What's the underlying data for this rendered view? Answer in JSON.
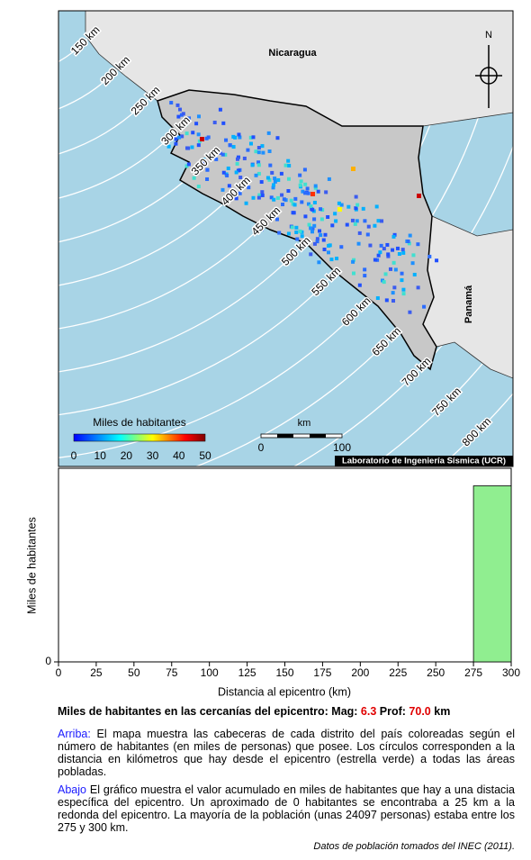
{
  "map": {
    "country_labels": [
      "Nicaragua",
      "Panamá"
    ],
    "north": "N",
    "distance_labels": [
      "150 km",
      "200 km",
      "250 km",
      "300 km",
      "350 km",
      "400 km",
      "450 km",
      "500 km",
      "550 km",
      "600 km",
      "650 km",
      "700 km",
      "750 km",
      "800 km"
    ],
    "colorbar": {
      "title": "Miles de habitantes",
      "ticks": [
        0,
        10,
        20,
        30,
        40,
        50
      ]
    },
    "scale": {
      "title": "km",
      "ticks": [
        0,
        100
      ]
    },
    "credit": "Laboratorio de Ingeniería Sísmica (UCR)"
  },
  "chart_data": {
    "type": "histogram",
    "xlabel": "Distancia al epicentro (km)",
    "ylabel": "Miles de habitantes",
    "bins": [
      0,
      25,
      50,
      75,
      100,
      125,
      150,
      175,
      200,
      225,
      250,
      275,
      300
    ],
    "values": [
      0,
      0,
      0,
      0,
      0,
      0,
      0,
      0,
      0,
      0,
      0,
      24.097
    ],
    "color": "#90ee90",
    "xlim": [
      0,
      300
    ],
    "xticks": [
      0,
      25,
      50,
      75,
      100,
      125,
      150,
      175,
      200,
      225,
      250,
      275,
      300
    ],
    "ylim": [
      0,
      26.5
    ],
    "yticks": [
      0
    ]
  },
  "caption": {
    "title": "Miles de habitantes en las cercanías del epicentro: Mag: ",
    "mag": "6.3",
    "prof_label": " Prof: ",
    "prof": "70.0",
    "unit": " km",
    "top_label": "Arriba:",
    "top_text": " El mapa muestra las cabeceras de cada distrito del país coloreadas según el número de habitantes (en miles de personas) que posee.  Los círculos corresponden a la distancia en kilómetros que hay desde el epicentro (estrella verde) a todas las áreas pobladas.",
    "bottom_label": "Abajo",
    "bottom_text": " El gráfico muestra el valor acumulado en miles de habitantes que hay a una distacia específica del epicentro.  Un aproximado de 0 habitantes se encontraba a 25 km a la redonda del epicentro.  La mayoría de la población (unas 24097 personas) estaba entre los 275 y 300 km.",
    "source": "Datos de población tomados del INEC (2011)."
  }
}
